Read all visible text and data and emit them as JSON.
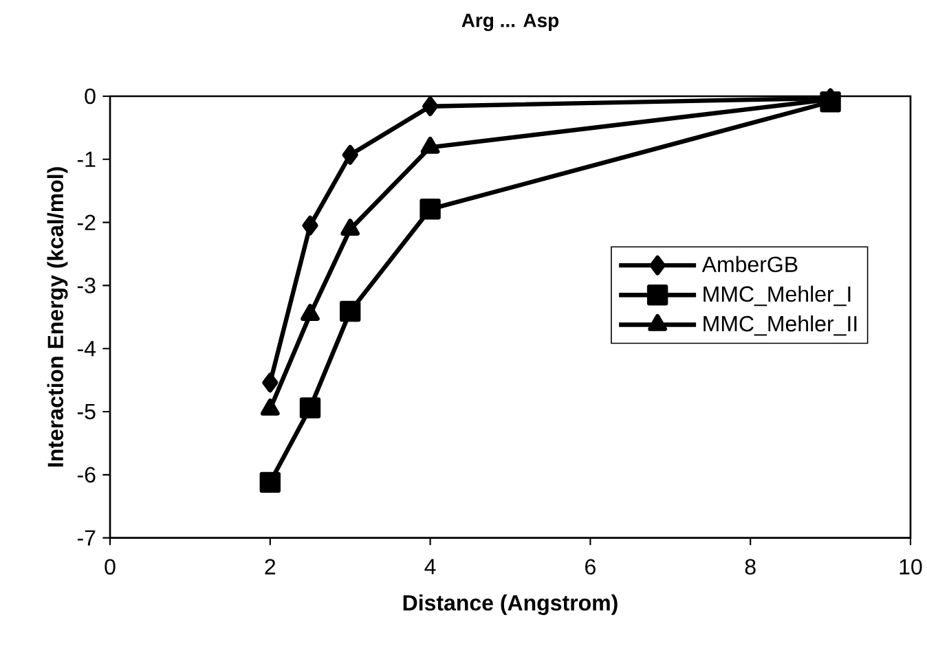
{
  "chart_data": {
    "type": "line",
    "title": "Arg ... Asp",
    "xlabel": "Distance (Angstrom)",
    "ylabel": "Interaction Energy (kcal/mol)",
    "xlim": [
      0,
      10
    ],
    "xticks": [
      0,
      2,
      4,
      6,
      8,
      10
    ],
    "ylim": [
      -7,
      0
    ],
    "yticks": [
      -7,
      -6,
      -5,
      -4,
      -3,
      -2,
      -1,
      0
    ],
    "grid": false,
    "legend": "right",
    "series": [
      {
        "name": "AmberGB",
        "color": "#000000",
        "marker": "diamond",
        "x": [
          2,
          2.5,
          3,
          4,
          9
        ],
        "values": [
          -4.54,
          -2.05,
          -0.93,
          -0.16,
          -0.03
        ]
      },
      {
        "name": "MMC_Mehler_I",
        "color": "#000000",
        "marker": "square",
        "x": [
          2,
          2.5,
          3,
          4,
          9
        ],
        "values": [
          -6.12,
          -4.94,
          -3.41,
          -1.79,
          -0.09
        ]
      },
      {
        "name": "MMC_Mehler_II",
        "color": "#000000",
        "marker": "triangle",
        "x": [
          2,
          2.5,
          3,
          4,
          9
        ],
        "values": [
          -4.96,
          -3.46,
          -2.11,
          -0.81,
          -0.05
        ]
      }
    ]
  }
}
